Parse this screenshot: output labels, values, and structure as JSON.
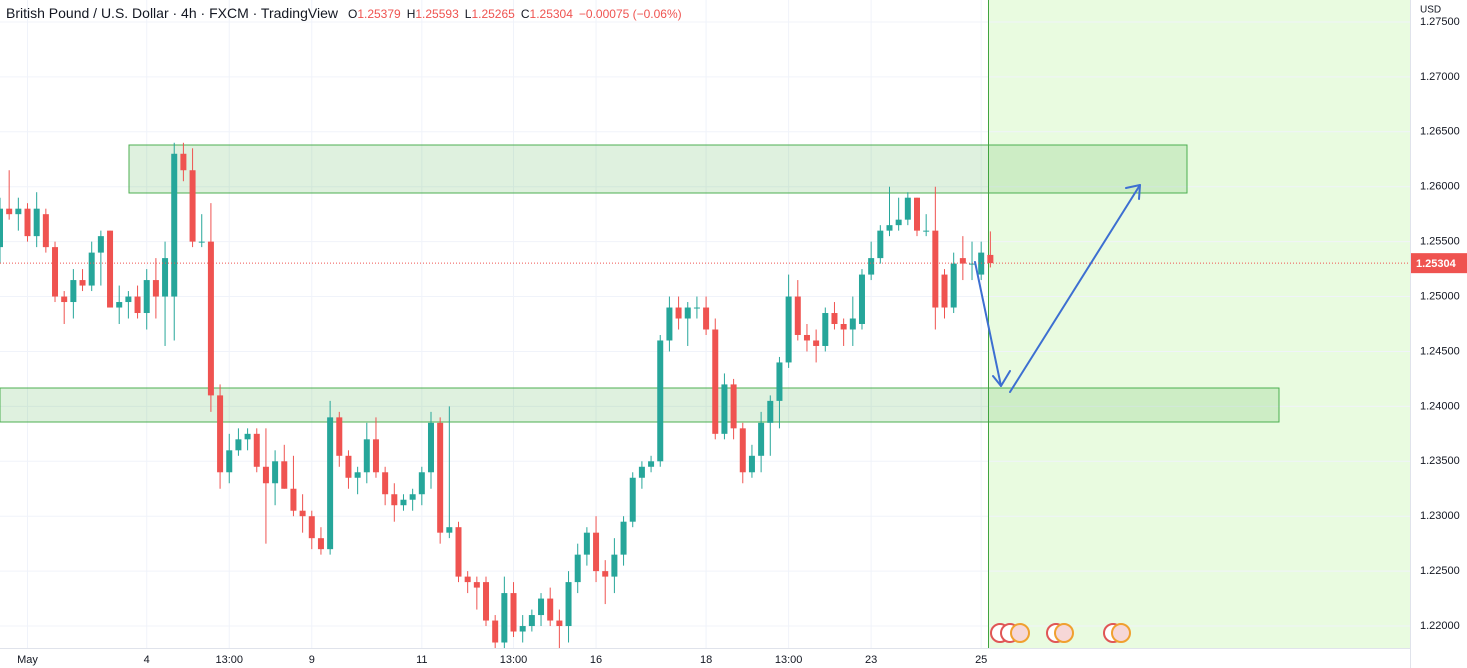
{
  "chart_data": {
    "type": "candlestick",
    "title": "British Pound / U.S. Dollar · 4h · FXCM · TradingView",
    "ohlc_letters": [
      "O",
      "H",
      "L",
      "C"
    ],
    "change": "−0.00075 (−0.06%)",
    "currency": "USD",
    "up_color": "#26a69a",
    "down_color": "#ef5350",
    "ylim": [
      1.218,
      1.277
    ],
    "yticks": [
      {
        "value": 1.275,
        "label": "1.27500"
      },
      {
        "value": 1.27,
        "label": "1.27000"
      },
      {
        "value": 1.265,
        "label": "1.26500"
      },
      {
        "value": 1.26,
        "label": "1.26000"
      },
      {
        "value": 1.255,
        "label": "1.25500"
      },
      {
        "value": 1.25,
        "label": "1.25000"
      },
      {
        "value": 1.245,
        "label": "1.24500"
      },
      {
        "value": 1.24,
        "label": "1.24000"
      },
      {
        "value": 1.235,
        "label": "1.23500"
      },
      {
        "value": 1.23,
        "label": "1.23000"
      },
      {
        "value": 1.225,
        "label": "1.22500"
      },
      {
        "value": 1.22,
        "label": "1.22000"
      }
    ],
    "grid": true,
    "categories": [
      null,
      null,
      null,
      "May",
      null,
      null,
      null,
      null,
      null,
      null,
      null,
      null,
      null,
      null,
      null,
      null,
      "4",
      null,
      null,
      null,
      null,
      null,
      null,
      null,
      null,
      "13:00",
      null,
      null,
      null,
      null,
      null,
      null,
      null,
      null,
      "9",
      null,
      null,
      null,
      null,
      null,
      null,
      null,
      null,
      null,
      null,
      null,
      "11",
      null,
      null,
      null,
      null,
      null,
      null,
      null,
      null,
      null,
      "13:00",
      null,
      null,
      null,
      null,
      null,
      null,
      null,
      null,
      "16",
      null,
      null,
      null,
      null,
      null,
      null,
      null,
      null,
      null,
      null,
      null,
      "18",
      null,
      null,
      null,
      null,
      null,
      null,
      null,
      null,
      "13:00",
      null,
      null,
      null,
      null,
      null,
      null,
      null,
      null,
      "23",
      null,
      null,
      null,
      null,
      null,
      null,
      null,
      null,
      null,
      null,
      null,
      "25",
      null
    ],
    "ohlc": [
      [
        1.2545,
        1.259,
        1.253,
        1.258
      ],
      [
        1.258,
        1.2615,
        1.257,
        1.2575
      ],
      [
        1.2575,
        1.259,
        1.256,
        1.258
      ],
      [
        1.258,
        1.2585,
        1.255,
        1.2555
      ],
      [
        1.2555,
        1.2595,
        1.2545,
        1.258
      ],
      [
        1.2575,
        1.258,
        1.254,
        1.2545
      ],
      [
        1.2545,
        1.255,
        1.2495,
        1.25
      ],
      [
        1.25,
        1.2505,
        1.2475,
        1.2495
      ],
      [
        1.2495,
        1.2525,
        1.248,
        1.2515
      ],
      [
        1.2515,
        1.2525,
        1.2505,
        1.251
      ],
      [
        1.251,
        1.255,
        1.2505,
        1.254
      ],
      [
        1.254,
        1.256,
        1.251,
        1.2555
      ],
      [
        1.256,
        1.256,
        1.249,
        1.249
      ],
      [
        1.249,
        1.251,
        1.2475,
        1.2495
      ],
      [
        1.2495,
        1.2505,
        1.248,
        1.25
      ],
      [
        1.25,
        1.251,
        1.248,
        1.2485
      ],
      [
        1.2485,
        1.2525,
        1.247,
        1.2515
      ],
      [
        1.2515,
        1.2535,
        1.248,
        1.25
      ],
      [
        1.25,
        1.255,
        1.2455,
        1.2535
      ],
      [
        1.25,
        1.264,
        1.246,
        1.263
      ],
      [
        1.263,
        1.264,
        1.2605,
        1.2615
      ],
      [
        1.2615,
        1.2635,
        1.2545,
        1.255
      ],
      [
        1.255,
        1.2575,
        1.2545,
        1.255
      ],
      [
        1.255,
        1.2585,
        1.2395,
        1.241
      ],
      [
        1.241,
        1.242,
        1.2325,
        1.234
      ],
      [
        1.234,
        1.2375,
        1.233,
        1.236
      ],
      [
        1.236,
        1.238,
        1.2355,
        1.237
      ],
      [
        1.237,
        1.238,
        1.236,
        1.2375
      ],
      [
        1.2375,
        1.238,
        1.234,
        1.2345
      ],
      [
        1.2345,
        1.238,
        1.2275,
        1.233
      ],
      [
        1.233,
        1.236,
        1.231,
        1.235
      ],
      [
        1.235,
        1.2365,
        1.2325,
        1.2325
      ],
      [
        1.2325,
        1.2355,
        1.23,
        1.2305
      ],
      [
        1.2305,
        1.232,
        1.2285,
        1.23
      ],
      [
        1.23,
        1.2305,
        1.227,
        1.228
      ],
      [
        1.228,
        1.229,
        1.2265,
        1.227
      ],
      [
        1.227,
        1.2405,
        1.2265,
        1.239
      ],
      [
        1.239,
        1.2395,
        1.2345,
        1.2355
      ],
      [
        1.2355,
        1.236,
        1.2325,
        1.2335
      ],
      [
        1.2335,
        1.2345,
        1.232,
        1.234
      ],
      [
        1.234,
        1.2385,
        1.233,
        1.237
      ],
      [
        1.237,
        1.239,
        1.2335,
        1.234
      ],
      [
        1.234,
        1.2345,
        1.231,
        1.232
      ],
      [
        1.232,
        1.233,
        1.2295,
        1.231
      ],
      [
        1.231,
        1.232,
        1.2305,
        1.2315
      ],
      [
        1.2315,
        1.2325,
        1.2305,
        1.232
      ],
      [
        1.232,
        1.2345,
        1.231,
        1.234
      ],
      [
        1.234,
        1.2395,
        1.2325,
        1.2385
      ],
      [
        1.2385,
        1.239,
        1.2275,
        1.2285
      ],
      [
        1.2285,
        1.24,
        1.228,
        1.229
      ],
      [
        1.229,
        1.2295,
        1.224,
        1.2245
      ],
      [
        1.2245,
        1.225,
        1.223,
        1.224
      ],
      [
        1.224,
        1.2245,
        1.2215,
        1.2235
      ],
      [
        1.224,
        1.2245,
        1.22,
        1.2205
      ],
      [
        1.2205,
        1.221,
        1.218,
        1.2185
      ],
      [
        1.2185,
        1.2245,
        1.218,
        1.223
      ],
      [
        1.223,
        1.224,
        1.219,
        1.2195
      ],
      [
        1.2195,
        1.221,
        1.2185,
        1.22
      ],
      [
        1.22,
        1.2215,
        1.2195,
        1.221
      ],
      [
        1.221,
        1.223,
        1.22,
        1.2225
      ],
      [
        1.2225,
        1.2235,
        1.22,
        1.2205
      ],
      [
        1.2205,
        1.2215,
        1.218,
        1.22
      ],
      [
        1.22,
        1.225,
        1.2185,
        1.224
      ],
      [
        1.224,
        1.2275,
        1.223,
        1.2265
      ],
      [
        1.2265,
        1.229,
        1.2255,
        1.2285
      ],
      [
        1.2285,
        1.23,
        1.224,
        1.225
      ],
      [
        1.225,
        1.226,
        1.222,
        1.2245
      ],
      [
        1.2245,
        1.228,
        1.223,
        1.2265
      ],
      [
        1.2265,
        1.23,
        1.2255,
        1.2295
      ],
      [
        1.2295,
        1.234,
        1.229,
        1.2335
      ],
      [
        1.2335,
        1.235,
        1.2325,
        1.2345
      ],
      [
        1.2345,
        1.2355,
        1.234,
        1.235
      ],
      [
        1.235,
        1.2465,
        1.2345,
        1.246
      ],
      [
        1.246,
        1.25,
        1.245,
        1.249
      ],
      [
        1.249,
        1.25,
        1.247,
        1.248
      ],
      [
        1.248,
        1.2495,
        1.2455,
        1.249
      ],
      [
        1.249,
        1.25,
        1.248,
        1.249
      ],
      [
        1.249,
        1.25,
        1.2465,
        1.247
      ],
      [
        1.247,
        1.248,
        1.237,
        1.2375
      ],
      [
        1.2375,
        1.243,
        1.237,
        1.242
      ],
      [
        1.242,
        1.2425,
        1.237,
        1.238
      ],
      [
        1.238,
        1.2385,
        1.233,
        1.234
      ],
      [
        1.234,
        1.2365,
        1.2335,
        1.2355
      ],
      [
        1.2355,
        1.2395,
        1.234,
        1.2385
      ],
      [
        1.2385,
        1.241,
        1.2355,
        1.2405
      ],
      [
        1.2405,
        1.2445,
        1.238,
        1.244
      ],
      [
        1.244,
        1.252,
        1.2435,
        1.25
      ],
      [
        1.25,
        1.2515,
        1.246,
        1.2465
      ],
      [
        1.2465,
        1.2475,
        1.245,
        1.246
      ],
      [
        1.246,
        1.247,
        1.244,
        1.2455
      ],
      [
        1.2455,
        1.249,
        1.245,
        1.2485
      ],
      [
        1.2485,
        1.2495,
        1.247,
        1.2475
      ],
      [
        1.2475,
        1.248,
        1.2455,
        1.247
      ],
      [
        1.247,
        1.25,
        1.2455,
        1.248
      ],
      [
        1.2475,
        1.2525,
        1.247,
        1.252
      ],
      [
        1.252,
        1.255,
        1.2515,
        1.2535
      ],
      [
        1.2535,
        1.2565,
        1.253,
        1.256
      ],
      [
        1.256,
        1.26,
        1.2555,
        1.2565
      ],
      [
        1.2565,
        1.259,
        1.256,
        1.257
      ],
      [
        1.257,
        1.2595,
        1.2565,
        1.259
      ],
      [
        1.259,
        1.259,
        1.2555,
        1.256
      ],
      [
        1.256,
        1.2575,
        1.2555,
        1.256
      ],
      [
        1.256,
        1.26,
        1.247,
        1.249
      ],
      [
        1.252,
        1.2525,
        1.248,
        1.249
      ],
      [
        1.249,
        1.254,
        1.2485,
        1.253
      ],
      [
        1.2535,
        1.2555,
        1.2515,
        1.253
      ],
      [
        1.253,
        1.255,
        1.2515,
        1.253
      ],
      [
        1.252,
        1.255,
        1.2515,
        1.254
      ],
      [
        1.25379,
        1.25593,
        1.25265,
        1.25304
      ]
    ]
  }
}
